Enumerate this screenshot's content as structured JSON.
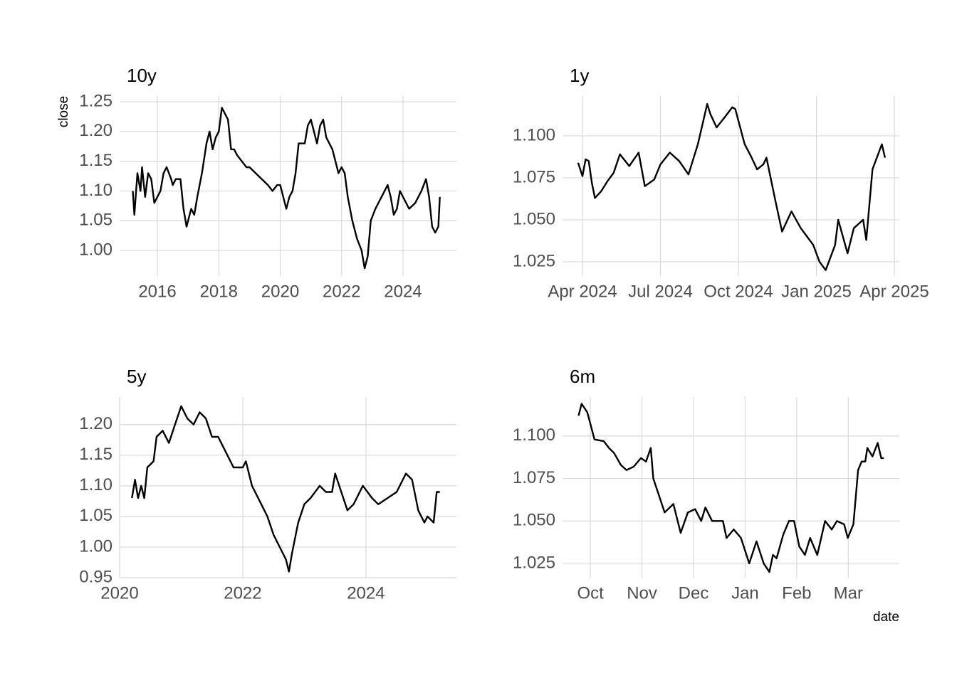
{
  "chart_data": [
    {
      "type": "line",
      "title": "10y",
      "y_label": "close",
      "color": "#000000",
      "grid": true,
      "x": [
        2015.2,
        2015.25,
        2015.35,
        2015.45,
        2015.5,
        2015.6,
        2015.7,
        2015.8,
        2015.9,
        2016.0,
        2016.1,
        2016.2,
        2016.3,
        2016.45,
        2016.5,
        2016.6,
        2016.75,
        2016.85,
        2016.95,
        2017.1,
        2017.2,
        2017.3,
        2017.45,
        2017.6,
        2017.7,
        2017.8,
        2017.9,
        2018.0,
        2018.1,
        2018.2,
        2018.3,
        2018.4,
        2018.5,
        2018.6,
        2018.75,
        2018.9,
        2019.0,
        2019.2,
        2019.4,
        2019.6,
        2019.75,
        2019.9,
        2020.0,
        2020.1,
        2020.2,
        2020.3,
        2020.4,
        2020.5,
        2020.6,
        2020.8,
        2020.9,
        2021.0,
        2021.2,
        2021.3,
        2021.4,
        2021.5,
        2021.7,
        2021.9,
        2022.0,
        2022.1,
        2022.2,
        2022.35,
        2022.5,
        2022.65,
        2022.75,
        2022.85,
        2022.95,
        2023.1,
        2023.3,
        2023.4,
        2023.5,
        2023.6,
        2023.7,
        2023.8,
        2023.9,
        2024.0,
        2024.2,
        2024.4,
        2024.6,
        2024.75,
        2024.85,
        2024.95,
        2025.05,
        2025.15,
        2025.2
      ],
      "values": [
        1.1,
        1.06,
        1.13,
        1.1,
        1.14,
        1.09,
        1.13,
        1.12,
        1.08,
        1.09,
        1.1,
        1.13,
        1.14,
        1.12,
        1.11,
        1.12,
        1.12,
        1.07,
        1.04,
        1.07,
        1.06,
        1.09,
        1.13,
        1.18,
        1.2,
        1.17,
        1.19,
        1.2,
        1.24,
        1.23,
        1.22,
        1.17,
        1.17,
        1.16,
        1.15,
        1.14,
        1.14,
        1.13,
        1.12,
        1.11,
        1.1,
        1.11,
        1.11,
        1.09,
        1.07,
        1.09,
        1.1,
        1.13,
        1.18,
        1.18,
        1.21,
        1.22,
        1.18,
        1.21,
        1.22,
        1.19,
        1.17,
        1.13,
        1.14,
        1.13,
        1.09,
        1.05,
        1.02,
        1.0,
        0.97,
        0.99,
        1.05,
        1.07,
        1.09,
        1.1,
        1.11,
        1.09,
        1.06,
        1.07,
        1.1,
        1.09,
        1.07,
        1.08,
        1.1,
        1.12,
        1.09,
        1.04,
        1.03,
        1.04,
        1.09
      ],
      "xlim": [
        2014.77,
        2025.74
      ],
      "xticks": [
        2016,
        2018,
        2020,
        2022,
        2024
      ],
      "ylim": [
        0.957,
        1.2596
      ],
      "yticks": [
        {
          "value": 1,
          "label": "1.00"
        },
        1.05,
        {
          "value": 1.1,
          "label": "1.10"
        },
        1.15,
        {
          "value": 1.2,
          "label": "1.20"
        },
        1.25
      ]
    },
    {
      "type": "line",
      "title": "1y",
      "color": "#000000",
      "grid": true,
      "x": [
        2024.236,
        2024.25,
        2024.26,
        2024.27,
        2024.28,
        2024.29,
        2024.31,
        2024.33,
        2024.35,
        2024.37,
        2024.4,
        2024.43,
        2024.45,
        2024.48,
        2024.5,
        2024.53,
        2024.56,
        2024.59,
        2024.62,
        2024.65,
        2024.66,
        2024.68,
        2024.71,
        2024.73,
        2024.74,
        2024.77,
        2024.79,
        2024.81,
        2024.83,
        2024.84,
        2024.87,
        2024.89,
        2024.92,
        2024.95,
        2024.97,
        2024.99,
        2025.01,
        2025.03,
        2025.06,
        2025.07,
        2025.1,
        2025.12,
        2025.15,
        2025.16,
        2025.18,
        2025.2,
        2025.21,
        2025.22
      ],
      "values": [
        1.084,
        1.076,
        1.086,
        1.085,
        1.072,
        1.063,
        1.067,
        1.073,
        1.078,
        1.089,
        1.082,
        1.09,
        1.07,
        1.074,
        1.083,
        1.09,
        1.085,
        1.077,
        1.095,
        1.119,
        1.113,
        1.105,
        1.112,
        1.117,
        1.116,
        1.095,
        1.088,
        1.08,
        1.083,
        1.087,
        1.06,
        1.043,
        1.055,
        1.045,
        1.04,
        1.035,
        1.025,
        1.02,
        1.035,
        1.05,
        1.03,
        1.045,
        1.05,
        1.038,
        1.08,
        1.09,
        1.095,
        1.087
      ],
      "xlim": [
        2024.186,
        2025.266
      ],
      "xticks": [
        {
          "value": 2024.25,
          "label": "Apr 2024"
        },
        {
          "value": 2024.5,
          "label": "Jul 2024"
        },
        {
          "value": 2024.75,
          "label": "Oct 2024"
        },
        {
          "value": 2025.0,
          "label": "Jan 2025"
        },
        {
          "value": 2025.25,
          "label": "Apr 2025"
        }
      ],
      "ylim": [
        1.0165,
        1.1237
      ],
      "yticks": [
        1.025,
        {
          "value": 1.05,
          "label": "1.050"
        },
        1.075,
        {
          "value": 1.1,
          "label": "1.100"
        }
      ]
    },
    {
      "type": "line",
      "title": "5y",
      "color": "#000000",
      "grid": true,
      "x": [
        2020.2,
        2020.25,
        2020.3,
        2020.35,
        2020.4,
        2020.45,
        2020.55,
        2020.6,
        2020.7,
        2020.8,
        2020.9,
        2021.0,
        2021.1,
        2021.2,
        2021.3,
        2021.4,
        2021.5,
        2021.6,
        2021.7,
        2021.85,
        2022.0,
        2022.05,
        2022.15,
        2022.3,
        2022.4,
        2022.5,
        2022.6,
        2022.7,
        2022.75,
        2022.8,
        2022.9,
        2023.0,
        2023.1,
        2023.25,
        2023.35,
        2023.45,
        2023.5,
        2023.6,
        2023.7,
        2023.8,
        2023.95,
        2024.1,
        2024.2,
        2024.35,
        2024.5,
        2024.65,
        2024.75,
        2024.85,
        2024.95,
        2025.0,
        2025.1,
        2025.15,
        2025.2
      ],
      "values": [
        1.08,
        1.11,
        1.08,
        1.1,
        1.08,
        1.13,
        1.14,
        1.18,
        1.19,
        1.17,
        1.2,
        1.23,
        1.21,
        1.2,
        1.22,
        1.21,
        1.18,
        1.18,
        1.16,
        1.13,
        1.13,
        1.14,
        1.1,
        1.07,
        1.05,
        1.02,
        1.0,
        0.98,
        0.96,
        0.99,
        1.04,
        1.07,
        1.08,
        1.1,
        1.09,
        1.09,
        1.12,
        1.09,
        1.06,
        1.07,
        1.1,
        1.08,
        1.07,
        1.08,
        1.09,
        1.12,
        1.11,
        1.06,
        1.04,
        1.05,
        1.04,
        1.09,
        1.09
      ],
      "xlim": [
        2020,
        2025.47
      ],
      "xticks": [
        2020,
        2022,
        2024
      ],
      "ylim": [
        0.95,
        1.245
      ],
      "yticks": [
        0.95,
        {
          "value": 1,
          "label": "1.00"
        },
        1.05,
        {
          "value": 1.1,
          "label": "1.10"
        },
        1.15,
        {
          "value": 1.2,
          "label": "1.20"
        }
      ]
    },
    {
      "type": "line",
      "title": "6m",
      "x_label": "date",
      "color": "#000000",
      "grid": true,
      "x": [
        9.77,
        9.83,
        9.94,
        10.08,
        10.26,
        10.36,
        10.46,
        10.59,
        10.7,
        10.84,
        10.98,
        11.08,
        11.17,
        11.22,
        11.33,
        11.44,
        11.61,
        11.75,
        11.89,
        12.03,
        12.15,
        12.23,
        12.36,
        12.57,
        12.64,
        12.78,
        12.92,
        13.08,
        13.22,
        13.36,
        13.47,
        13.54,
        13.61,
        13.74,
        13.85,
        13.95,
        14.05,
        14.16,
        14.26,
        14.4,
        14.55,
        14.68,
        14.78,
        14.92,
        14.99,
        15.1,
        15.19,
        15.26,
        15.33,
        15.37,
        15.47,
        15.57,
        15.64,
        15.69
      ],
      "values": [
        1.112,
        1.119,
        1.114,
        1.098,
        1.097,
        1.093,
        1.09,
        1.083,
        1.08,
        1.082,
        1.087,
        1.085,
        1.093,
        1.075,
        1.065,
        1.055,
        1.06,
        1.043,
        1.055,
        1.057,
        1.05,
        1.058,
        1.05,
        1.05,
        1.04,
        1.045,
        1.04,
        1.025,
        1.038,
        1.025,
        1.02,
        1.03,
        1.028,
        1.042,
        1.05,
        1.05,
        1.035,
        1.03,
        1.04,
        1.03,
        1.05,
        1.045,
        1.05,
        1.048,
        1.04,
        1.048,
        1.08,
        1.085,
        1.085,
        1.093,
        1.088,
        1.096,
        1.087,
        1.087
      ],
      "xlim": [
        9.46,
        15.99
      ],
      "xticks": [
        {
          "value": 10,
          "label": "Oct"
        },
        {
          "value": 11,
          "label": "Nov"
        },
        {
          "value": 12,
          "label": "Dec"
        },
        {
          "value": 13,
          "label": "Jan"
        },
        {
          "value": 14,
          "label": "Feb"
        },
        {
          "value": 15,
          "label": "Mar"
        }
      ],
      "ylim": [
        1.0166,
        1.123
      ],
      "yticks": [
        1.025,
        {
          "value": 1.05,
          "label": "1.050"
        },
        1.075,
        {
          "value": 1.1,
          "label": "1.100"
        }
      ]
    }
  ]
}
